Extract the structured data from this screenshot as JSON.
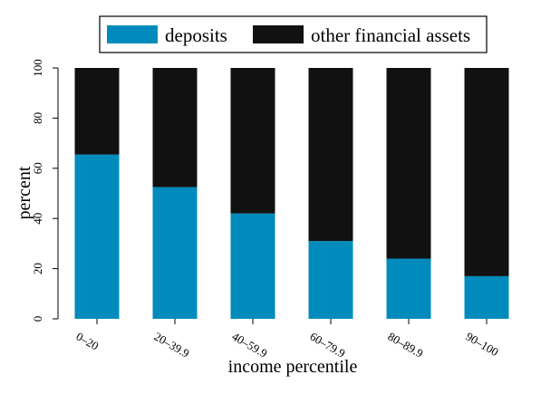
{
  "chart_data": {
    "type": "bar",
    "stacked": true,
    "percent_stacked": true,
    "categories": [
      "0–20",
      "20–39.9",
      "40–59.9",
      "60–79.9",
      "80–89.9",
      "90–100"
    ],
    "series": [
      {
        "name": "deposits",
        "color": "#008bbc",
        "values": [
          65.5,
          52.5,
          42,
          31,
          24,
          17
        ]
      },
      {
        "name": "other financial assets",
        "color": "#111111",
        "values": [
          34.5,
          47.5,
          58,
          69,
          76,
          83
        ]
      }
    ],
    "title": "",
    "xlabel": "income percentile",
    "ylabel": "percent",
    "ylim": [
      0,
      100
    ],
    "yticks": [
      0,
      20,
      40,
      60,
      80,
      100
    ],
    "grid": false,
    "legend_position": "top"
  }
}
